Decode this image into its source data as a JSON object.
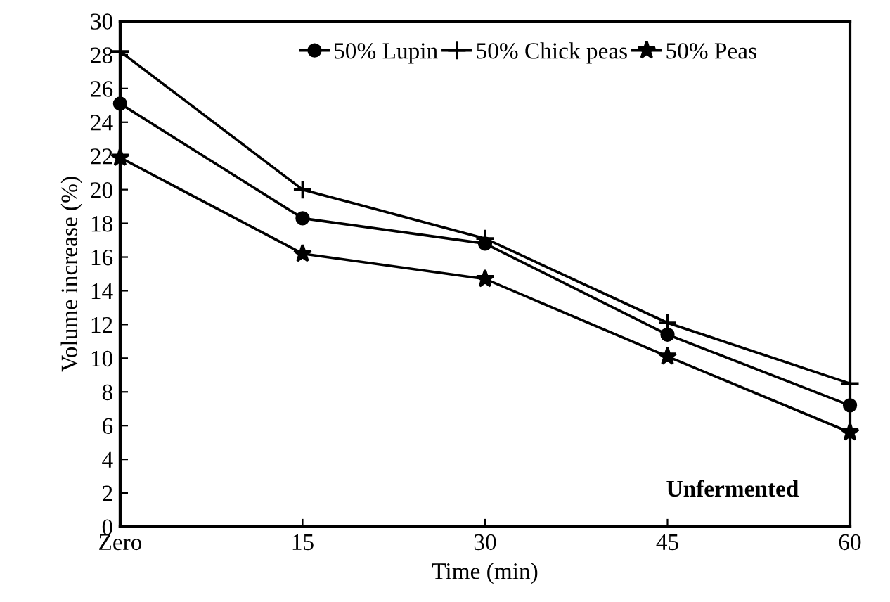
{
  "chart_data": {
    "type": "line",
    "xlabel": "Time (min)",
    "ylabel": "Volume increase (%)",
    "categories": [
      "Zero",
      "15",
      "30",
      "45",
      "60"
    ],
    "series": [
      {
        "name": "50% Lupin",
        "color": "#000000",
        "marker": "circle",
        "values": [
          25.1,
          18.3,
          16.8,
          11.4,
          7.2
        ]
      },
      {
        "name": "50% Chick peas",
        "color": "#000000",
        "marker": "cross",
        "values": [
          28.2,
          20.0,
          17.1,
          12.1,
          8.5
        ]
      },
      {
        "name": "50% Peas",
        "color": "#000000",
        "marker": "star",
        "values": [
          21.9,
          16.2,
          14.7,
          10.1,
          5.6
        ]
      }
    ],
    "ylim": [
      0,
      30
    ],
    "yticks": [
      0,
      2,
      4,
      6,
      8,
      10,
      12,
      14,
      16,
      18,
      20,
      22,
      24,
      26,
      28,
      30
    ],
    "grid": false,
    "legend": "top",
    "line_style": "solid",
    "annotations": [
      "Unfermented"
    ]
  }
}
